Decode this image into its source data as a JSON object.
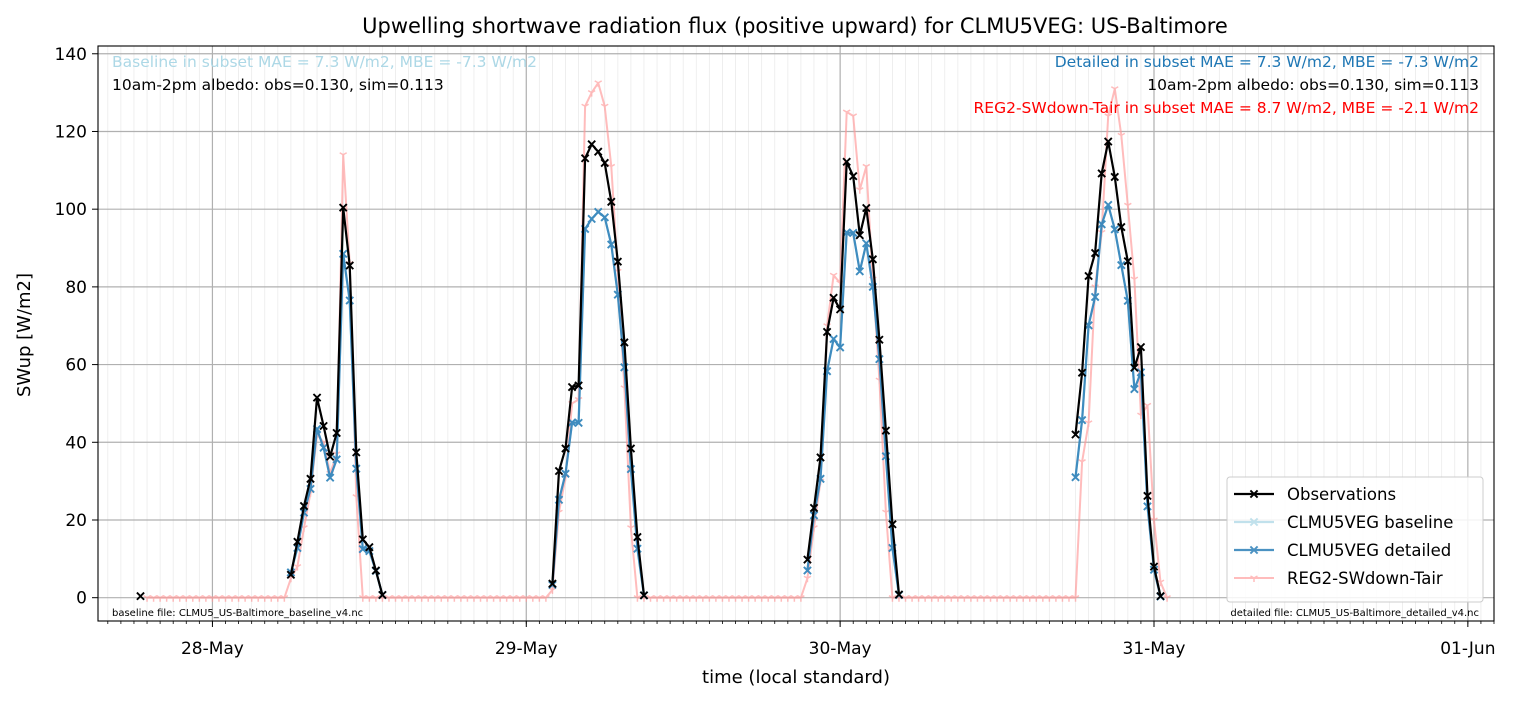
{
  "chart_data": {
    "type": "line",
    "title": "Upwelling shortwave radiation flux (positive upward) for CLMU5VEG: US-Baltimore",
    "xlabel": "time (local standard)",
    "ylabel": "SWup [W/m2]",
    "ylim": [
      -6,
      142
    ],
    "yticks": [
      0,
      20,
      40,
      60,
      80,
      100,
      120,
      140
    ],
    "xlim": [
      "2024-05-27 15:15",
      "2024-06-01 02:00"
    ],
    "xtick_labels": [
      "28-May",
      "29-May",
      "30-May",
      "31-May",
      "01-Jun"
    ],
    "xtick_dates": [
      "2024-05-28",
      "2024-05-29",
      "2024-05-30",
      "2024-05-31",
      "2024-06-01"
    ],
    "grid": true,
    "legend_location": "lower right",
    "time_step_minutes": 30,
    "annotations": {
      "baseline_stats": "Baseline in subset MAE = 7.3 W/m2, MBE = -7.3 W/m2",
      "baseline_albedo": "10am-2pm albedo: obs=0.130, sim=0.113",
      "detailed_stats": "Detailed in subset MAE = 7.3 W/m2, MBE = -7.3 W/m2",
      "detailed_albedo": "10am-2pm albedo: obs=0.130, sim=0.113",
      "reg2_stats": "REG2-SWdown-Tair in subset MAE = 8.7 W/m2, MBE = -2.1 W/m2",
      "baseline_file": "baseline file: CLMU5_US-Baltimore_baseline_v4.nc",
      "detailed_file": "detailed file: CLMU5_US-Baltimore_detailed_v4.nc"
    },
    "annotation_colors": {
      "baseline_stats": "#add8e6",
      "detailed_stats": "#1f77b4",
      "reg2_stats": "#ff0000",
      "other": "#000000"
    },
    "series": [
      {
        "name": "Observations",
        "color": "#000000",
        "marker": "x",
        "start": "2024-05-27 18:30",
        "values": [
          0.4,
          null,
          null,
          null,
          null,
          null,
          null,
          null,
          null,
          null,
          null,
          null,
          null,
          null,
          null,
          null,
          null,
          null,
          null,
          null,
          null,
          null,
          null,
          5.9,
          14.4,
          23.6,
          30.6,
          51.5,
          44.2,
          36.3,
          42.4,
          100.4,
          85.5,
          37.4,
          15.0,
          13.0,
          7.0,
          0.7,
          null,
          null,
          null,
          null,
          null,
          null,
          null,
          null,
          null,
          null,
          null,
          null,
          null,
          null,
          null,
          null,
          null,
          null,
          null,
          null,
          null,
          null,
          null,
          null,
          null,
          3.6,
          32.6,
          38.4,
          54.2,
          54.6,
          113.1,
          116.7,
          114.8,
          111.9,
          101.9,
          86.5,
          65.7,
          38.4,
          15.6,
          0.6,
          null,
          null,
          null,
          null,
          null,
          null,
          null,
          null,
          null,
          null,
          null,
          null,
          null,
          null,
          null,
          null,
          null,
          null,
          null,
          null,
          null,
          null,
          null,
          null,
          9.8,
          23.1,
          36.1,
          68.4,
          77.2,
          74.2,
          112.2,
          108.5,
          93.3,
          100.3,
          87.1,
          66.4,
          43.0,
          18.9,
          0.8,
          null,
          null,
          null,
          null,
          null,
          null,
          null,
          null,
          null,
          null,
          null,
          null,
          null,
          null,
          null,
          null,
          null,
          null,
          null,
          null,
          null,
          null,
          null,
          null,
          null,
          null,
          42.0,
          57.9,
          82.8,
          88.7,
          109.2,
          117.4,
          108.3,
          95.4,
          86.6,
          59.2,
          64.5,
          26.2,
          8.0,
          0.4
        ]
      },
      {
        "name": "CLMU5VEG baseline",
        "color": "#add8e6",
        "marker": "x",
        "start": "2024-05-27 18:30",
        "values": [
          null,
          null,
          null,
          null,
          null,
          null,
          null,
          null,
          null,
          null,
          null,
          null,
          null,
          null,
          null,
          null,
          null,
          null,
          null,
          null,
          null,
          null,
          null,
          6.5,
          12.8,
          21.9,
          28.0,
          43.4,
          38.6,
          30.9,
          35.6,
          88.5,
          76.5,
          33.2,
          12.5,
          12.0,
          6.9,
          0.7,
          null,
          null,
          null,
          null,
          null,
          null,
          null,
          null,
          null,
          null,
          null,
          null,
          null,
          null,
          null,
          null,
          null,
          null,
          null,
          null,
          null,
          null,
          null,
          null,
          null,
          3.3,
          25.2,
          31.9,
          45.1,
          45.0,
          94.9,
          97.5,
          99.3,
          97.9,
          90.9,
          78.0,
          59.3,
          33.1,
          12.6,
          0.6,
          null,
          null,
          null,
          null,
          null,
          null,
          null,
          null,
          null,
          null,
          null,
          null,
          null,
          null,
          null,
          null,
          null,
          null,
          null,
          null,
          null,
          null,
          null,
          null,
          7.0,
          21.2,
          30.6,
          58.3,
          66.6,
          64.4,
          94.0,
          93.9,
          84.0,
          91.2,
          80.0,
          61.4,
          36.4,
          12.8,
          0.7,
          null,
          null,
          null,
          null,
          null,
          null,
          null,
          null,
          null,
          null,
          null,
          null,
          null,
          null,
          null,
          null,
          null,
          null,
          null,
          null,
          null,
          null,
          null,
          null,
          null,
          null,
          31.0,
          45.7,
          70.1,
          77.4,
          96.1,
          101.1,
          94.8,
          85.6,
          76.4,
          53.7,
          58.0,
          23.5,
          7.2,
          0.3
        ]
      },
      {
        "name": "CLMU5VEG detailed",
        "color": "#1f77b4",
        "marker": "x",
        "start": "2024-05-27 18:30",
        "values": [
          null,
          null,
          null,
          null,
          null,
          null,
          null,
          null,
          null,
          null,
          null,
          null,
          null,
          null,
          null,
          null,
          null,
          null,
          null,
          null,
          null,
          null,
          null,
          6.5,
          12.8,
          21.9,
          28.0,
          43.4,
          38.6,
          30.9,
          35.6,
          88.5,
          76.5,
          33.2,
          12.5,
          12.0,
          6.9,
          0.7,
          null,
          null,
          null,
          null,
          null,
          null,
          null,
          null,
          null,
          null,
          null,
          null,
          null,
          null,
          null,
          null,
          null,
          null,
          null,
          null,
          null,
          null,
          null,
          null,
          null,
          3.3,
          25.2,
          31.9,
          45.1,
          45.0,
          94.9,
          97.5,
          99.3,
          97.9,
          90.9,
          78.0,
          59.3,
          33.1,
          12.6,
          0.6,
          null,
          null,
          null,
          null,
          null,
          null,
          null,
          null,
          null,
          null,
          null,
          null,
          null,
          null,
          null,
          null,
          null,
          null,
          null,
          null,
          null,
          null,
          null,
          null,
          7.0,
          21.2,
          30.6,
          58.3,
          66.6,
          64.4,
          94.0,
          93.9,
          84.0,
          91.2,
          80.0,
          61.4,
          36.4,
          12.8,
          0.7,
          null,
          null,
          null,
          null,
          null,
          null,
          null,
          null,
          null,
          null,
          null,
          null,
          null,
          null,
          null,
          null,
          null,
          null,
          null,
          null,
          null,
          null,
          null,
          null,
          null,
          null,
          31.0,
          45.7,
          70.1,
          77.4,
          96.1,
          101.1,
          94.8,
          85.6,
          76.4,
          53.7,
          58.0,
          23.5,
          7.2,
          0.3
        ]
      },
      {
        "name": "REG2-SWdown-Tair",
        "color": "#ff9999",
        "marker": "1",
        "start": "2024-05-27 18:30",
        "values": [
          null,
          0,
          0,
          0,
          0,
          0,
          0,
          0,
          0,
          0,
          0,
          0,
          0,
          0,
          0,
          0,
          0,
          0,
          0,
          0,
          0,
          0,
          0,
          5.0,
          8.0,
          18.0,
          27.0,
          42.0,
          40.0,
          32.0,
          37.0,
          114.0,
          86.0,
          26.0,
          0,
          0,
          0,
          0,
          0,
          0,
          0,
          0,
          0,
          0,
          0,
          0,
          0,
          0,
          0,
          0,
          0,
          0,
          0,
          0,
          0,
          0,
          0,
          0,
          0,
          0,
          0,
          0,
          0,
          2.0,
          22.0,
          31.0,
          50.0,
          51.0,
          126.5,
          130.0,
          132.5,
          126.5,
          111.0,
          84.0,
          54.0,
          18.0,
          0,
          0,
          0,
          0,
          0,
          0,
          0,
          0,
          0,
          0,
          0,
          0,
          0,
          0,
          0,
          0,
          0,
          0,
          0,
          0,
          0,
          0,
          0,
          0,
          0,
          0,
          5.0,
          18.0,
          30.0,
          70.0,
          83.0,
          81.0,
          125.0,
          124.0,
          105.0,
          111.0,
          82.0,
          56.0,
          22.0,
          0,
          0,
          0,
          0,
          0,
          0,
          0,
          0,
          0,
          0,
          0,
          0,
          0,
          0,
          0,
          0,
          0,
          0,
          0,
          0,
          0,
          0,
          0,
          0,
          0,
          0,
          0,
          0,
          0,
          35.0,
          45.0,
          80.0,
          94.0,
          124.0,
          131.0,
          119.0,
          101.0,
          82.0,
          47.0,
          49.5,
          20.0,
          4.0,
          0
        ]
      }
    ]
  }
}
